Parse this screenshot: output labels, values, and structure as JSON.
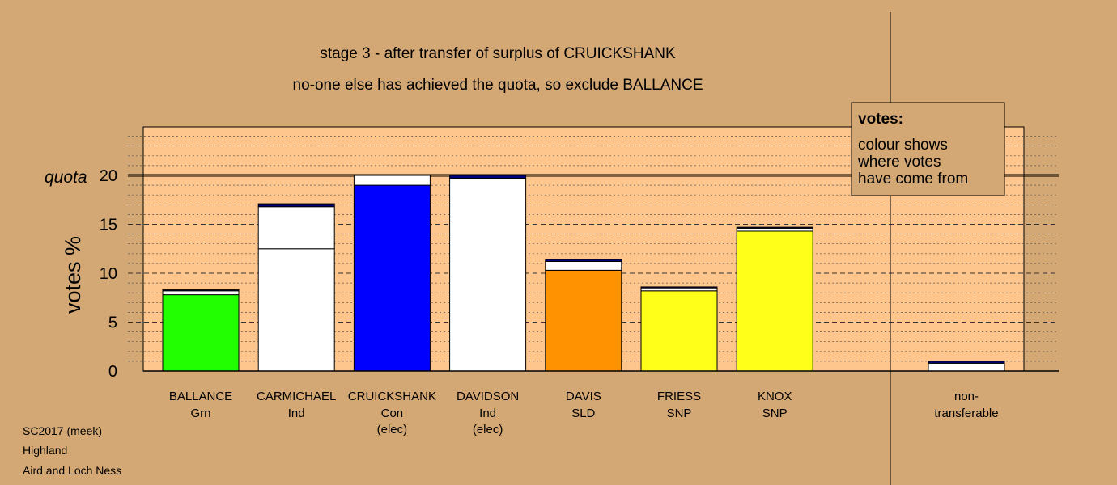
{
  "chart_data": {
    "type": "bar",
    "title": "stage 3 - after transfer of surplus of CRUICKSHANK",
    "subtitle": "no-one else has achieved the quota, so exclude BALLANCE",
    "ylabel": "votes %",
    "ylim": [
      0,
      25
    ],
    "yticks": [
      "0",
      "5",
      "10",
      "15",
      "20"
    ],
    "quota": 20,
    "quota_label": "quota",
    "grid": true,
    "candidates": [
      {
        "name": "BALLANCE",
        "party": "Grn",
        "status": "",
        "total": 8.3,
        "segments": [
          {
            "value": 7.8,
            "color": "#22ff00"
          },
          {
            "value": 0.4,
            "color": "#ffffff"
          },
          {
            "value": 0.1,
            "color": "#000080"
          }
        ]
      },
      {
        "name": "CARMICHAEL",
        "party": "Ind",
        "status": "",
        "total": 17.1,
        "segments": [
          {
            "value": 12.5,
            "color": "#ffffff"
          },
          {
            "value": 4.3,
            "color": "#ffffff"
          },
          {
            "value": 0.3,
            "color": "#000080"
          }
        ]
      },
      {
        "name": "CRUICKSHANK",
        "party": "Con",
        "status": "(elec)",
        "total": 20.0,
        "segments": [
          {
            "value": 19.0,
            "color": "#0000ff"
          },
          {
            "value": 1.0,
            "color": "#ffffff"
          }
        ]
      },
      {
        "name": "DAVIDSON",
        "party": "Ind",
        "status": "(elec)",
        "total": 20.0,
        "segments": [
          {
            "value": 19.7,
            "color": "#ffffff"
          },
          {
            "value": 0.3,
            "color": "#000080"
          }
        ]
      },
      {
        "name": "DAVIS",
        "party": "SLD",
        "status": "",
        "total": 11.4,
        "segments": [
          {
            "value": 10.3,
            "color": "#ff9200"
          },
          {
            "value": 0.9,
            "color": "#ffffff"
          },
          {
            "value": 0.2,
            "color": "#000080"
          }
        ]
      },
      {
        "name": "FRIESS",
        "party": "SNP",
        "status": "",
        "total": 8.6,
        "segments": [
          {
            "value": 8.2,
            "color": "#ffff1a"
          },
          {
            "value": 0.3,
            "color": "#ffffff"
          },
          {
            "value": 0.1,
            "color": "#000080"
          }
        ]
      },
      {
        "name": "KNOX",
        "party": "SNP",
        "status": "",
        "total": 14.7,
        "segments": [
          {
            "value": 14.3,
            "color": "#ffff1a"
          },
          {
            "value": 0.3,
            "color": "#ffffff"
          },
          {
            "value": 0.1,
            "color": "#000080"
          }
        ]
      }
    ],
    "nontransferable": {
      "label_line1": "non-",
      "label_line2": "transferable",
      "total": 1.0,
      "segments": [
        {
          "value": 0.8,
          "color": "#ffffff"
        },
        {
          "value": 0.2,
          "color": "#000080"
        }
      ]
    },
    "legend": {
      "title": "votes:",
      "lines": [
        "colour shows",
        "where votes",
        "have come from"
      ],
      "placement": "top-right"
    },
    "colors": {
      "background": "#d4a874",
      "plot_area": "#fec68c"
    }
  },
  "footer": [
    "SC2017 (meek)",
    "Highland",
    "Aird and Loch Ness"
  ]
}
